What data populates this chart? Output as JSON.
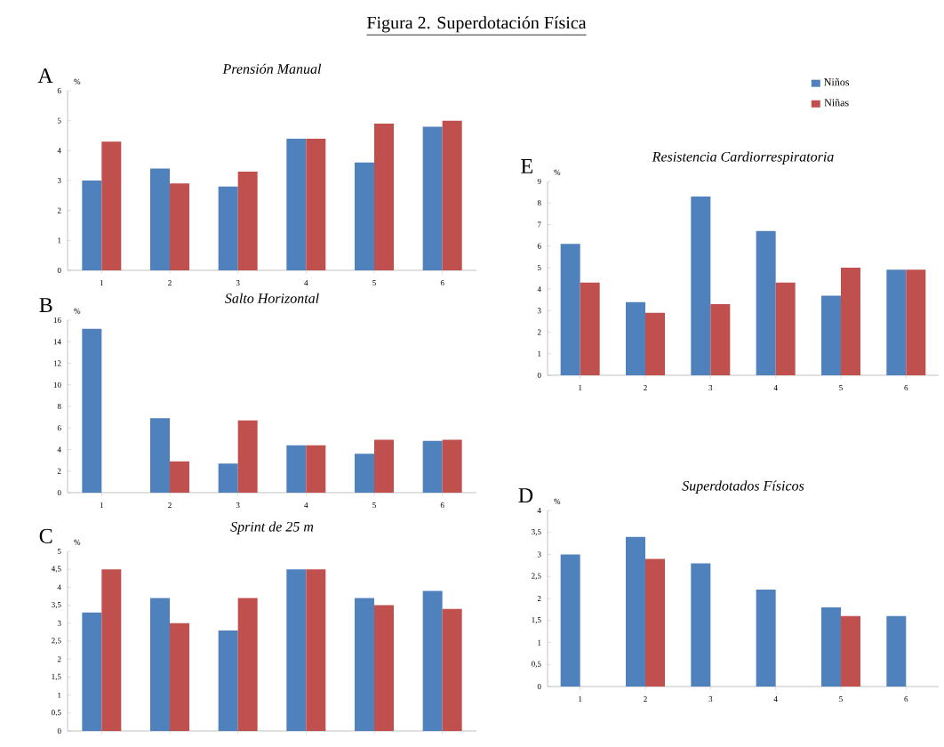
{
  "chart_data": [
    {
      "type": "bar",
      "title": "Prensión Manual",
      "ylabel": "%",
      "annotations": [
        "Figura 2. Superdotación Física",
        "A"
      ],
      "categories": [
        "1",
        "2",
        "3",
        "4",
        "5",
        "6"
      ],
      "ylim": [
        0,
        6
      ],
      "yticks": [
        0,
        1,
        2,
        3,
        4,
        5,
        6
      ],
      "series": [
        {
          "color": "#4f81bd",
          "values": [
            3.0,
            3.4,
            2.8,
            4.4,
            3.6,
            4.8
          ]
        },
        {
          "color": "#c0504d",
          "values": [
            4.3,
            2.9,
            3.3,
            4.4,
            4.9,
            5.0
          ]
        }
      ]
    },
    {
      "type": "bar",
      "title": "Salto Horizontal",
      "ylabel": "%",
      "annotations": [
        "B"
      ],
      "categories": [
        "1",
        "2",
        "3",
        "4",
        "5",
        "6"
      ],
      "ylim": [
        0,
        16
      ],
      "yticks": [
        0,
        2,
        4,
        6,
        8,
        10,
        12,
        14,
        16
      ],
      "series": [
        {
          "color": "#4f81bd",
          "values": [
            15.2,
            6.9,
            2.7,
            4.4,
            3.6,
            4.8
          ]
        },
        {
          "color": "#c0504d",
          "values": [
            null,
            2.9,
            6.7,
            4.4,
            4.9,
            4.9
          ]
        }
      ]
    },
    {
      "type": "bar",
      "title": "Sprint de 25 m",
      "ylabel": "%",
      "annotations": [
        "C"
      ],
      "categories": [
        null,
        null,
        null,
        null,
        null,
        null
      ],
      "ylim": [
        0,
        5
      ],
      "tick_labels": "y",
      "yticks": [
        0,
        {
          "value": 0.5,
          "label": "0,5"
        },
        1,
        {
          "value": 1.5,
          "label": "1,5"
        },
        2,
        {
          "value": 2.5,
          "label": "2,5"
        },
        3,
        {
          "value": 3.5,
          "label": "3,5"
        },
        4,
        {
          "value": 4.5,
          "label": "4,5"
        },
        5
      ],
      "series": [
        {
          "color": "#4f81bd",
          "values": [
            3.3,
            3.7,
            2.8,
            4.5,
            3.7,
            3.9
          ]
        },
        {
          "color": "#c0504d",
          "values": [
            4.5,
            3.0,
            3.7,
            4.5,
            3.5,
            3.4
          ]
        }
      ]
    },
    {
      "type": "bar",
      "title": "Resistencia Cardiorrespiratoria",
      "ylabel": "%",
      "annotations": [
        "E"
      ],
      "categories": [
        "1",
        "2",
        "3",
        "4",
        "5",
        "6"
      ],
      "ylim": [
        0,
        9
      ],
      "yticks": [
        0,
        1,
        2,
        3,
        4,
        5,
        6,
        7,
        8,
        9
      ],
      "legend": "top right",
      "series": [
        {
          "name": "Niños",
          "color": "#4f81bd",
          "values": [
            6.1,
            3.4,
            8.3,
            6.7,
            3.7,
            4.9
          ]
        },
        {
          "name": "Niñas",
          "color": "#c0504d",
          "values": [
            4.3,
            2.9,
            3.3,
            4.3,
            5.0,
            4.9
          ]
        }
      ]
    },
    {
      "type": "bar",
      "title": "Superdotados Físicos",
      "ylabel": "%",
      "annotations": [
        "D"
      ],
      "categories": [
        "1",
        "2",
        "3",
        "4",
        "5",
        "6"
      ],
      "ylim": [
        0,
        4
      ],
      "yticks": [
        0,
        {
          "value": 0.5,
          "label": "0,5"
        },
        1,
        {
          "value": 1.5,
          "label": "1,5"
        },
        2,
        {
          "value": 2.5,
          "label": "2,5"
        },
        3,
        {
          "value": 3.5,
          "label": "3,5"
        },
        4
      ],
      "series": [
        {
          "color": "#4f81bd",
          "values": [
            3.0,
            3.4,
            2.8,
            2.2,
            1.8,
            1.6
          ]
        },
        {
          "color": "#c0504d",
          "values": [
            null,
            2.9,
            null,
            null,
            1.6,
            null
          ]
        }
      ]
    }
  ]
}
